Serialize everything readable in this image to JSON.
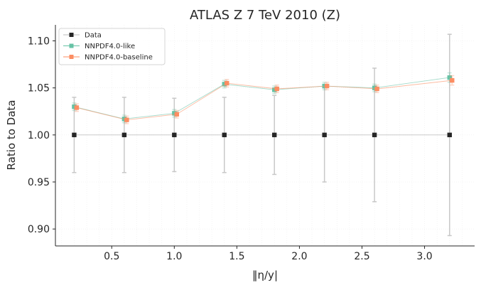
{
  "chart_data": {
    "type": "scatter",
    "title": "ATLAS Z 7 TeV 2010 (Z)",
    "xlabel": "‖η/y|",
    "ylabel": "Ratio to Data",
    "xlim": [
      0.05,
      3.4
    ],
    "ylim": [
      0.882,
      1.117
    ],
    "xticks": [
      0.5,
      1.0,
      1.5,
      2.0,
      2.5,
      3.0
    ],
    "xtick_labels": [
      "0.5",
      "1.0",
      "1.5",
      "2.0",
      "2.5",
      "3.0"
    ],
    "yticks": [
      0.9,
      0.95,
      1.0,
      1.05,
      1.1
    ],
    "ytick_labels": [
      "0.90",
      "0.95",
      "1.00",
      "1.05",
      "1.10"
    ],
    "grid": true,
    "legend_position": "top-left",
    "series": [
      {
        "name": "Data",
        "color": "#262626",
        "marker": "square",
        "points": [
          {
            "x": 0.2,
            "y": 1.0,
            "err": 0.04
          },
          {
            "x": 0.6,
            "y": 1.0,
            "err": 0.04
          },
          {
            "x": 1.0,
            "y": 1.0,
            "err": 0.039
          },
          {
            "x": 1.4,
            "y": 1.0,
            "err": 0.04
          },
          {
            "x": 1.8,
            "y": 1.0,
            "err": 0.042
          },
          {
            "x": 2.2,
            "y": 1.0,
            "err": 0.05
          },
          {
            "x": 2.6,
            "y": 1.0,
            "err": 0.071
          },
          {
            "x": 3.2,
            "y": 1.0,
            "err": 0.107
          }
        ]
      },
      {
        "name": "NNPDF4.0-like",
        "color": "#66c2a5",
        "marker": "square",
        "points": [
          {
            "x": 0.2,
            "y": 1.03,
            "err": 0.004
          },
          {
            "x": 0.6,
            "y": 1.017,
            "err": 0.004
          },
          {
            "x": 1.0,
            "y": 1.023,
            "err": 0.004
          },
          {
            "x": 1.4,
            "y": 1.054,
            "err": 0.004
          },
          {
            "x": 1.8,
            "y": 1.048,
            "err": 0.004
          },
          {
            "x": 2.2,
            "y": 1.052,
            "err": 0.004
          },
          {
            "x": 2.6,
            "y": 1.05,
            "err": 0.004
          },
          {
            "x": 3.2,
            "y": 1.061,
            "err": 0.005
          }
        ]
      },
      {
        "name": "NNPDF4.0-baseline",
        "color": "#fc8d62",
        "marker": "square",
        "points": [
          {
            "x": 0.22,
            "y": 1.029,
            "err": 0.004
          },
          {
            "x": 0.62,
            "y": 1.016,
            "err": 0.004
          },
          {
            "x": 1.02,
            "y": 1.022,
            "err": 0.004
          },
          {
            "x": 1.42,
            "y": 1.055,
            "err": 0.004
          },
          {
            "x": 1.82,
            "y": 1.049,
            "err": 0.004
          },
          {
            "x": 2.22,
            "y": 1.052,
            "err": 0.004
          },
          {
            "x": 2.62,
            "y": 1.049,
            "err": 0.004
          },
          {
            "x": 3.22,
            "y": 1.058,
            "err": 0.005
          }
        ]
      }
    ]
  }
}
